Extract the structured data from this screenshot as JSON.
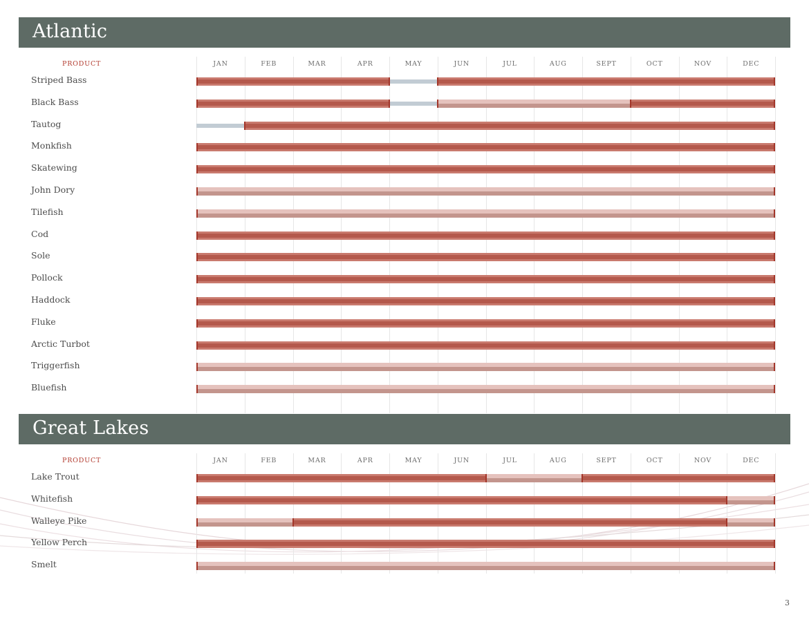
{
  "page_number": "3",
  "colors": {
    "banner": "#5e6b65",
    "peak_season": "#b4594c",
    "available": "#e5c2bd",
    "out_of_season": "#c2ccd4",
    "product_header": "#b23a2e"
  },
  "months": [
    "JAN",
    "FEB",
    "MAR",
    "APR",
    "MAY",
    "JUN",
    "JUL",
    "AUG",
    "SEPT",
    "OCT",
    "NOV",
    "DEC"
  ],
  "sections": [
    {
      "title": "Atlantic",
      "product_label": "PRODUCT",
      "rows": [
        {
          "name": "Striped Bass",
          "segments": [
            {
              "from": 0,
              "to": 4,
              "status": "peak"
            },
            {
              "from": 4,
              "to": 5,
              "status": "out"
            },
            {
              "from": 5,
              "to": 12,
              "status": "peak"
            }
          ]
        },
        {
          "name": "Black Bass",
          "segments": [
            {
              "from": 0,
              "to": 4,
              "status": "peak"
            },
            {
              "from": 4,
              "to": 5,
              "status": "out"
            },
            {
              "from": 5,
              "to": 9,
              "status": "avail"
            },
            {
              "from": 9,
              "to": 12,
              "status": "peak"
            }
          ]
        },
        {
          "name": "Tautog",
          "segments": [
            {
              "from": 0,
              "to": 1,
              "status": "out"
            },
            {
              "from": 1,
              "to": 12,
              "status": "peak"
            }
          ]
        },
        {
          "name": "Monkfish",
          "segments": [
            {
              "from": 0,
              "to": 12,
              "status": "peak"
            }
          ]
        },
        {
          "name": "Skatewing",
          "segments": [
            {
              "from": 0,
              "to": 12,
              "status": "peak"
            }
          ]
        },
        {
          "name": "John Dory",
          "segments": [
            {
              "from": 0,
              "to": 12,
              "status": "avail"
            }
          ]
        },
        {
          "name": "Tilefish",
          "segments": [
            {
              "from": 0,
              "to": 12,
              "status": "avail"
            }
          ]
        },
        {
          "name": "Cod",
          "segments": [
            {
              "from": 0,
              "to": 12,
              "status": "peak"
            }
          ]
        },
        {
          "name": "Sole",
          "segments": [
            {
              "from": 0,
              "to": 12,
              "status": "peak"
            }
          ]
        },
        {
          "name": "Pollock",
          "segments": [
            {
              "from": 0,
              "to": 12,
              "status": "peak"
            }
          ]
        },
        {
          "name": "Haddock",
          "segments": [
            {
              "from": 0,
              "to": 12,
              "status": "peak"
            }
          ]
        },
        {
          "name": "Fluke",
          "segments": [
            {
              "from": 0,
              "to": 12,
              "status": "peak"
            }
          ]
        },
        {
          "name": "Arctic Turbot",
          "segments": [
            {
              "from": 0,
              "to": 12,
              "status": "peak"
            }
          ]
        },
        {
          "name": "Triggerfish",
          "segments": [
            {
              "from": 0,
              "to": 12,
              "status": "avail"
            }
          ]
        },
        {
          "name": "Bluefish",
          "segments": [
            {
              "from": 0,
              "to": 12,
              "status": "avail"
            }
          ]
        }
      ]
    },
    {
      "title": "Great Lakes",
      "product_label": "PRODUCT",
      "rows": [
        {
          "name": "Lake Trout",
          "segments": [
            {
              "from": 0,
              "to": 6,
              "status": "peak"
            },
            {
              "from": 6,
              "to": 8,
              "status": "avail"
            },
            {
              "from": 8,
              "to": 12,
              "status": "peak"
            }
          ]
        },
        {
          "name": "Whitefish",
          "segments": [
            {
              "from": 0,
              "to": 11,
              "status": "peak"
            },
            {
              "from": 11,
              "to": 12,
              "status": "avail"
            }
          ]
        },
        {
          "name": "Walleye Pike",
          "segments": [
            {
              "from": 0,
              "to": 2,
              "status": "avail"
            },
            {
              "from": 2,
              "to": 11,
              "status": "peak"
            },
            {
              "from": 11,
              "to": 12,
              "status": "avail"
            }
          ]
        },
        {
          "name": "Yellow Perch",
          "segments": [
            {
              "from": 0,
              "to": 12,
              "status": "peak"
            }
          ]
        },
        {
          "name": "Smelt",
          "segments": [
            {
              "from": 0,
              "to": 12,
              "status": "avail"
            }
          ]
        }
      ]
    }
  ]
}
